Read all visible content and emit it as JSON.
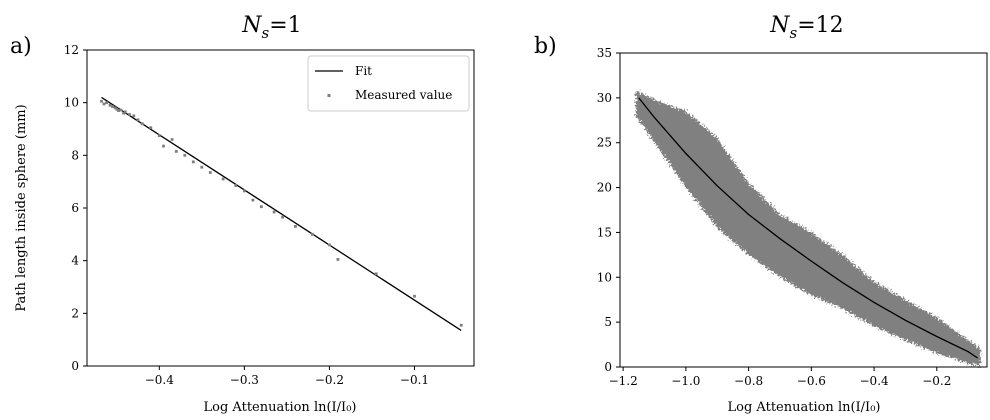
{
  "chart_data": [
    {
      "type": "scatter",
      "panel_label": "a)",
      "title": "N_s=1",
      "title_parts": {
        "symbol": "N",
        "subscript": "s",
        "rest": "=1"
      },
      "xlabel": "Log Attenuation ln(I/I₀)",
      "ylabel": "Path length inside sphere (mm)",
      "xlim": [
        -0.485,
        -0.03
      ],
      "ylim": [
        0,
        12
      ],
      "xticks": [
        -0.4,
        -0.3,
        -0.2,
        -0.1
      ],
      "xtick_labels": [
        "−0.4",
        "−0.3",
        "−0.2",
        "−0.1"
      ],
      "yticks": [
        0,
        2,
        4,
        6,
        8,
        10,
        12
      ],
      "ytick_labels": [
        "0",
        "2",
        "4",
        "6",
        "8",
        "10",
        "12"
      ],
      "grid": false,
      "legend": {
        "position": "top-right",
        "entries": [
          "Fit",
          "Measured value"
        ]
      },
      "series": [
        {
          "name": "Fit",
          "kind": "line",
          "color": "#000000",
          "x": [
            -0.468,
            -0.045
          ],
          "y": [
            10.2,
            1.35
          ]
        },
        {
          "name": "Measured value",
          "kind": "points",
          "color": "#7f7f7f",
          "x": [
            -0.468,
            -0.465,
            -0.462,
            -0.458,
            -0.455,
            -0.452,
            -0.45,
            -0.448,
            -0.445,
            -0.442,
            -0.44,
            -0.435,
            -0.43,
            -0.425,
            -0.42,
            -0.41,
            -0.4,
            -0.395,
            -0.385,
            -0.38,
            -0.37,
            -0.36,
            -0.35,
            -0.34,
            -0.325,
            -0.31,
            -0.3,
            -0.29,
            -0.28,
            -0.265,
            -0.255,
            -0.24,
            -0.22,
            -0.2,
            -0.19,
            -0.145,
            -0.1,
            -0.045
          ],
          "y": [
            10.05,
            9.95,
            10.0,
            9.9,
            9.85,
            9.8,
            9.75,
            9.7,
            9.72,
            9.6,
            9.65,
            9.55,
            9.5,
            9.35,
            9.2,
            9.05,
            8.75,
            8.35,
            8.6,
            8.15,
            8.0,
            7.75,
            7.55,
            7.35,
            7.1,
            6.85,
            6.65,
            6.3,
            6.05,
            5.85,
            5.65,
            5.3,
            5.0,
            4.6,
            4.05,
            3.5,
            2.65,
            1.55
          ]
        }
      ]
    },
    {
      "type": "scatter",
      "panel_label": "b)",
      "title": "N_s=12",
      "title_parts": {
        "symbol": "N",
        "subscript": "s",
        "rest": "=12"
      },
      "xlabel": "Log Attenuation ln(I/I₀)",
      "ylabel": "",
      "xlim": [
        -1.21,
        -0.04
      ],
      "ylim": [
        0,
        35
      ],
      "xticks": [
        -1.2,
        -1.0,
        -0.8,
        -0.6,
        -0.4,
        -0.2
      ],
      "xtick_labels": [
        "−1.2",
        "−1.0",
        "−0.8",
        "−0.6",
        "−0.4",
        "−0.2"
      ],
      "yticks": [
        0,
        5,
        10,
        15,
        20,
        25,
        30,
        35
      ],
      "ytick_labels": [
        "0",
        "5",
        "10",
        "15",
        "20",
        "25",
        "30",
        "35"
      ],
      "grid": false,
      "legend": null,
      "series": [
        {
          "name": "",
          "kind": "band",
          "color": "#808080",
          "x": [
            -1.16,
            -1.1,
            -1.0,
            -0.9,
            -0.8,
            -0.7,
            -0.6,
            -0.5,
            -0.4,
            -0.3,
            -0.2,
            -0.08,
            -0.06
          ],
          "y_low": [
            28.0,
            25.0,
            20.0,
            15.5,
            12.5,
            10.0,
            8.0,
            6.5,
            4.5,
            3.0,
            1.5,
            0.2,
            0.1
          ],
          "y_high": [
            30.8,
            29.8,
            28.5,
            25.5,
            20.5,
            17.0,
            15.0,
            12.5,
            9.5,
            7.5,
            5.5,
            2.5,
            2.0
          ]
        },
        {
          "name": "",
          "kind": "line",
          "color": "#000000",
          "x": [
            -1.15,
            -1.1,
            -1.0,
            -0.9,
            -0.8,
            -0.7,
            -0.6,
            -0.5,
            -0.4,
            -0.3,
            -0.2,
            -0.1,
            -0.07
          ],
          "y": [
            30.0,
            27.8,
            23.8,
            20.2,
            17.0,
            14.3,
            11.8,
            9.4,
            7.2,
            5.2,
            3.4,
            1.7,
            1.0
          ]
        }
      ]
    }
  ]
}
